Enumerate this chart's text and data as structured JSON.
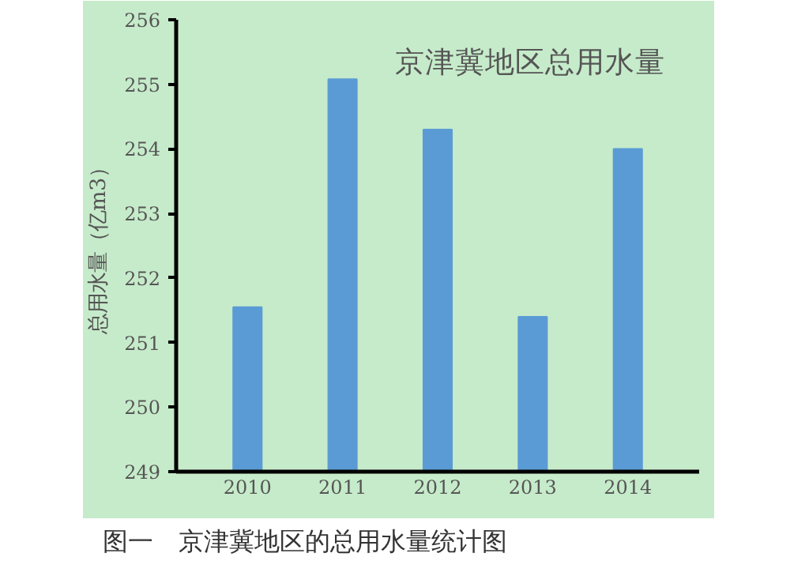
{
  "chart_data": {
    "type": "bar",
    "title": "京津冀地区总用水量",
    "ylabel": "总用水量（亿m3）",
    "categories": [
      "2010",
      "2011",
      "2012",
      "2013",
      "2014"
    ],
    "values": [
      251.55,
      255.08,
      254.3,
      251.4,
      254.0
    ],
    "color": "#5b9bd5",
    "ylim": [
      249,
      256
    ],
    "yticks": [
      249,
      250,
      251,
      252,
      253,
      254,
      255,
      256
    ],
    "grid": false,
    "annotations": [
      "图一　京津冀地区的总用水量统计图"
    ]
  }
}
